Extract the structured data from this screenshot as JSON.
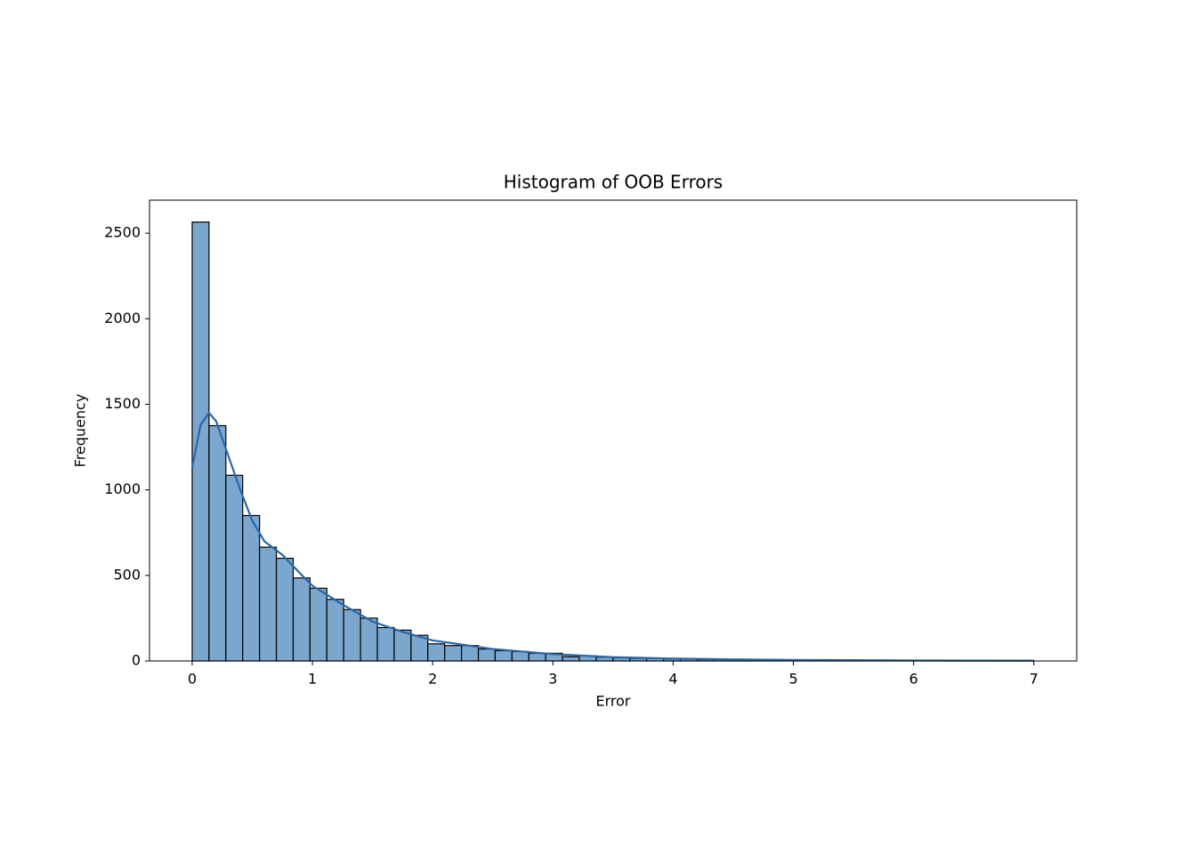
{
  "chart_data": {
    "type": "histogram",
    "title": "Histogram of OOB Errors",
    "x_label": "Error",
    "y_label": "Frequency",
    "bins": [
      0,
      0.14,
      0.28,
      0.42,
      0.56,
      0.7,
      0.84,
      0.98,
      1.12,
      1.26,
      1.4,
      1.54,
      1.68,
      1.82,
      1.96,
      2.1,
      2.24,
      2.38,
      2.52,
      2.66,
      2.8,
      2.94,
      3.08,
      3.22,
      3.36,
      3.5,
      3.64,
      3.78,
      3.92,
      4.06,
      4.2,
      4.34,
      4.48,
      4.62,
      4.76,
      4.9,
      5.04,
      5.18,
      5.32,
      5.46,
      5.6,
      5.74,
      5.88,
      6.02,
      6.16,
      6.3,
      6.44,
      6.58,
      6.72,
      6.86,
      7.0
    ],
    "values": [
      2565,
      1375,
      1085,
      850,
      665,
      600,
      485,
      425,
      360,
      300,
      250,
      195,
      180,
      150,
      100,
      90,
      90,
      70,
      60,
      55,
      45,
      45,
      25,
      30,
      22,
      18,
      15,
      15,
      12,
      12,
      8,
      8,
      7,
      5,
      6,
      4,
      3,
      3,
      3,
      2,
      2,
      2,
      1,
      1,
      1,
      1,
      1,
      1,
      1,
      1
    ],
    "color": "#7ba7cf",
    "edge_color": "#000000",
    "kde": {
      "color": "#2a66a8",
      "x": [
        0,
        0.07,
        0.14,
        0.2,
        0.3,
        0.4,
        0.5,
        0.6,
        0.75,
        0.9,
        1.0,
        1.25,
        1.5,
        1.75,
        2.0,
        2.25,
        2.5,
        3.0,
        3.5,
        4.0,
        4.5,
        5.0,
        6.0,
        7.0
      ],
      "y": [
        1130,
        1380,
        1450,
        1400,
        1200,
        1000,
        820,
        700,
        620,
        510,
        440,
        330,
        230,
        170,
        120,
        95,
        70,
        40,
        22,
        14,
        9,
        6,
        3,
        2
      ]
    },
    "xlim": [
      -0.355,
      7.357
    ],
    "ylim": [
      0,
      2693
    ],
    "xticks": [
      0,
      1,
      2,
      3,
      4,
      5,
      6,
      7
    ],
    "yticks": [
      0,
      500,
      1000,
      1500,
      2000,
      2500
    ]
  }
}
